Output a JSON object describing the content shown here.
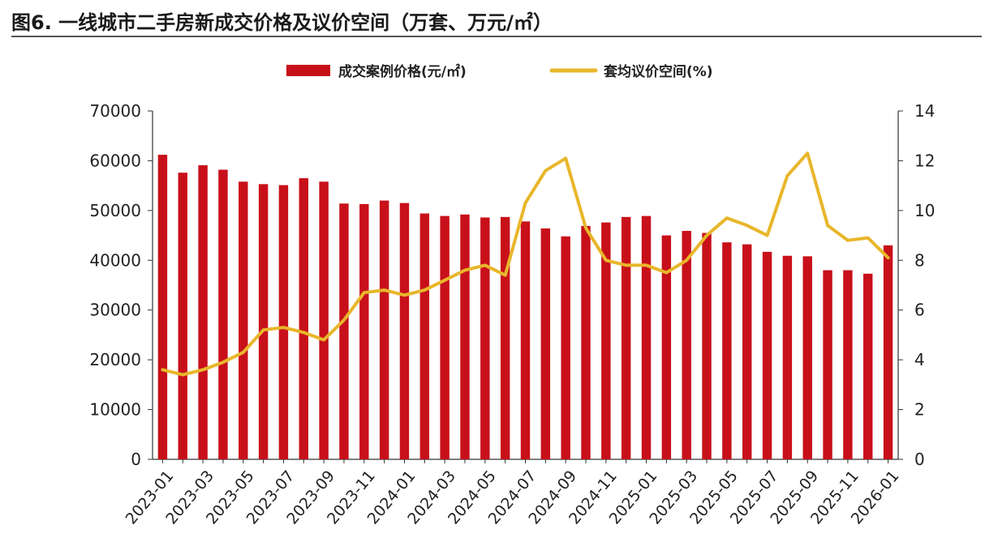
{
  "figure": {
    "title": "图6. 一线城市二手房新成交价格及议价空间（万套、万元/㎡）"
  },
  "colors": {
    "bar": "#c8101a",
    "line": "#e8b62a",
    "axis": "#333333",
    "text": "#222222"
  },
  "chart_data": {
    "type": "bar+line",
    "title": "图6. 一线城市二手房新成交价格及议价空间（万套、万元/㎡）",
    "legend_position": "top-center",
    "grid": false,
    "x": [
      "2023-01",
      "2023-02",
      "2023-03",
      "2023-04",
      "2023-05",
      "2023-06",
      "2023-07",
      "2023-08",
      "2023-09",
      "2023-10",
      "2023-11",
      "2023-12",
      "2024-01",
      "2024-02",
      "2024-03",
      "2024-04",
      "2024-05",
      "2024-06",
      "2024-07",
      "2024-08",
      "2024-09",
      "2024-10",
      "2024-11",
      "2024-12",
      "2025-01",
      "2025-02",
      "2025-03",
      "2025-04",
      "2025-05",
      "2025-06",
      "2025-07",
      "2025-08",
      "2025-09",
      "2025-10",
      "2025-11",
      "2025-12",
      "2026-01"
    ],
    "x_tick_labels": [
      "2023-01",
      "2023-03",
      "2023-05",
      "2023-07",
      "2023-09",
      "2023-11",
      "2024-01",
      "2024-03",
      "2024-05",
      "2024-07",
      "2024-09",
      "2024-11",
      "2025-01",
      "2025-03",
      "2025-05",
      "2025-07",
      "2025-09",
      "2025-11",
      "2026-01"
    ],
    "y_left": {
      "min": 0,
      "max": 70000,
      "ticks": [
        "0",
        "10000",
        "20000",
        "30000",
        "40000",
        "50000",
        "60000",
        "70000"
      ]
    },
    "y_right": {
      "min": 0,
      "max": 14,
      "ticks": [
        "0",
        "2",
        "4",
        "6",
        "8",
        "10",
        "12",
        "14"
      ]
    },
    "series": [
      {
        "name": "成交案例价格(元/㎡)",
        "type": "bar",
        "axis": "left",
        "values": [
          61200,
          57600,
          59100,
          58200,
          55800,
          55300,
          55100,
          56500,
          55800,
          51400,
          51300,
          52000,
          51500,
          49400,
          48900,
          49200,
          48600,
          48700,
          47800,
          46400,
          44800,
          46900,
          47600,
          48700,
          48900,
          45000,
          45900,
          45500,
          43600,
          43200,
          41700,
          40900,
          40800,
          38000,
          38000,
          37300,
          43000
        ]
      },
      {
        "name": "套均议价空间(%)",
        "type": "line",
        "axis": "right",
        "values": [
          3.6,
          3.4,
          3.6,
          3.9,
          4.3,
          5.2,
          5.3,
          5.1,
          4.8,
          5.6,
          6.7,
          6.8,
          6.6,
          6.8,
          7.2,
          7.6,
          7.8,
          7.4,
          10.3,
          11.6,
          12.1,
          9.3,
          8.0,
          7.8,
          7.8,
          7.5,
          8.0,
          9.0,
          9.7,
          9.4,
          9.0,
          11.4,
          12.3,
          9.4,
          8.8,
          8.9,
          8.1
        ]
      }
    ]
  }
}
